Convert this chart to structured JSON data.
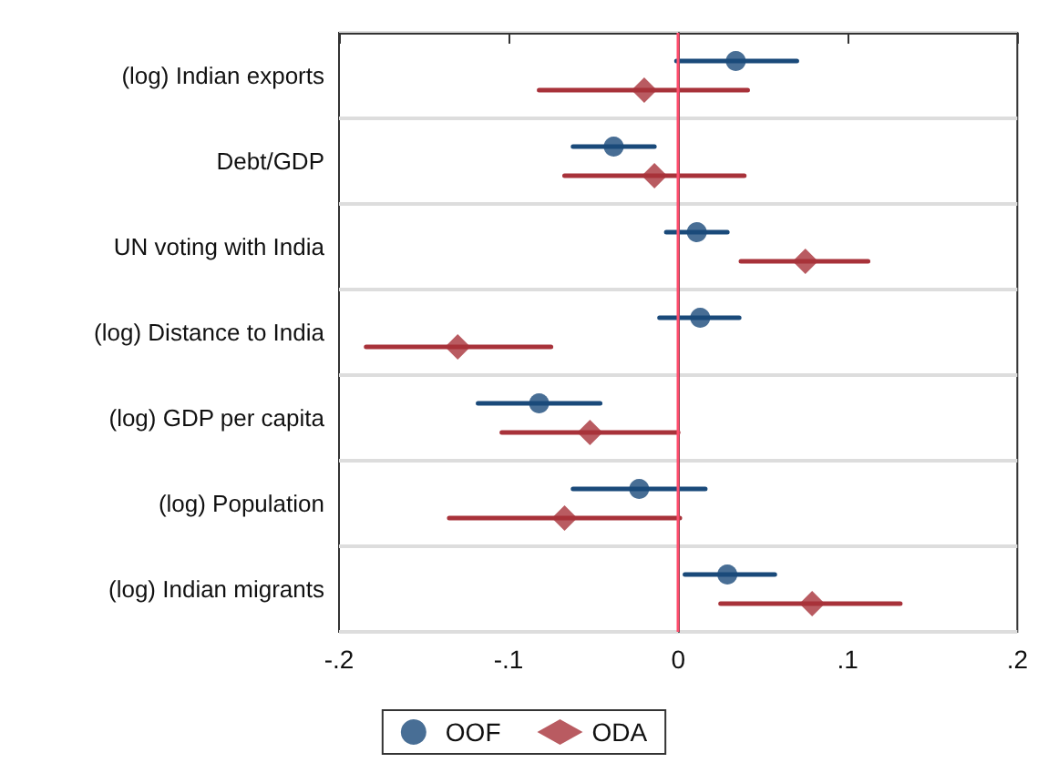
{
  "chart_data": {
    "type": "scatter",
    "orientation": "horizontal",
    "categories": [
      "(log) Indian exports",
      "Debt/GDP",
      "UN voting with India",
      "(log) Distance to India",
      "(log) GDP per capita",
      "(log) Population",
      "(log) Indian migrants"
    ],
    "series": [
      {
        "name": "OOF",
        "color": "#1a4a7a",
        "marker": "circle",
        "values": [
          0.034,
          -0.038,
          0.011,
          0.013,
          -0.082,
          -0.023,
          0.029
        ],
        "errors": [
          [
            -0.001,
            0.07
          ],
          [
            -0.062,
            -0.014
          ],
          [
            -0.007,
            0.029
          ],
          [
            -0.011,
            0.036
          ],
          [
            -0.118,
            -0.046
          ],
          [
            -0.062,
            0.016
          ],
          [
            0.004,
            0.057
          ]
        ]
      },
      {
        "name": "ODA",
        "color": "#a8323a",
        "marker": "diamond",
        "values": [
          -0.02,
          -0.014,
          0.075,
          -0.13,
          -0.052,
          -0.067,
          0.079
        ],
        "errors": [
          [
            -0.082,
            0.041
          ],
          [
            -0.067,
            0.039
          ],
          [
            0.037,
            0.112
          ],
          [
            -0.184,
            -0.075
          ],
          [
            -0.104,
            0.0
          ],
          [
            -0.135,
            0.001
          ],
          [
            0.025,
            0.131
          ]
        ]
      }
    ],
    "xlim": [
      -0.2,
      0.2
    ],
    "xticks": [
      {
        "value": -0.2,
        "label": "-.2"
      },
      {
        "value": -0.1,
        "label": "-.1"
      },
      {
        "value": 0,
        "label": "0"
      },
      {
        "value": 0.1,
        "label": ".1"
      },
      {
        "value": 0.2,
        "label": ".2"
      }
    ],
    "ref_lines": [
      {
        "axis": "x",
        "value": 0,
        "color": "#ff4d6d"
      }
    ],
    "grid": "y",
    "legend": "bottom"
  }
}
